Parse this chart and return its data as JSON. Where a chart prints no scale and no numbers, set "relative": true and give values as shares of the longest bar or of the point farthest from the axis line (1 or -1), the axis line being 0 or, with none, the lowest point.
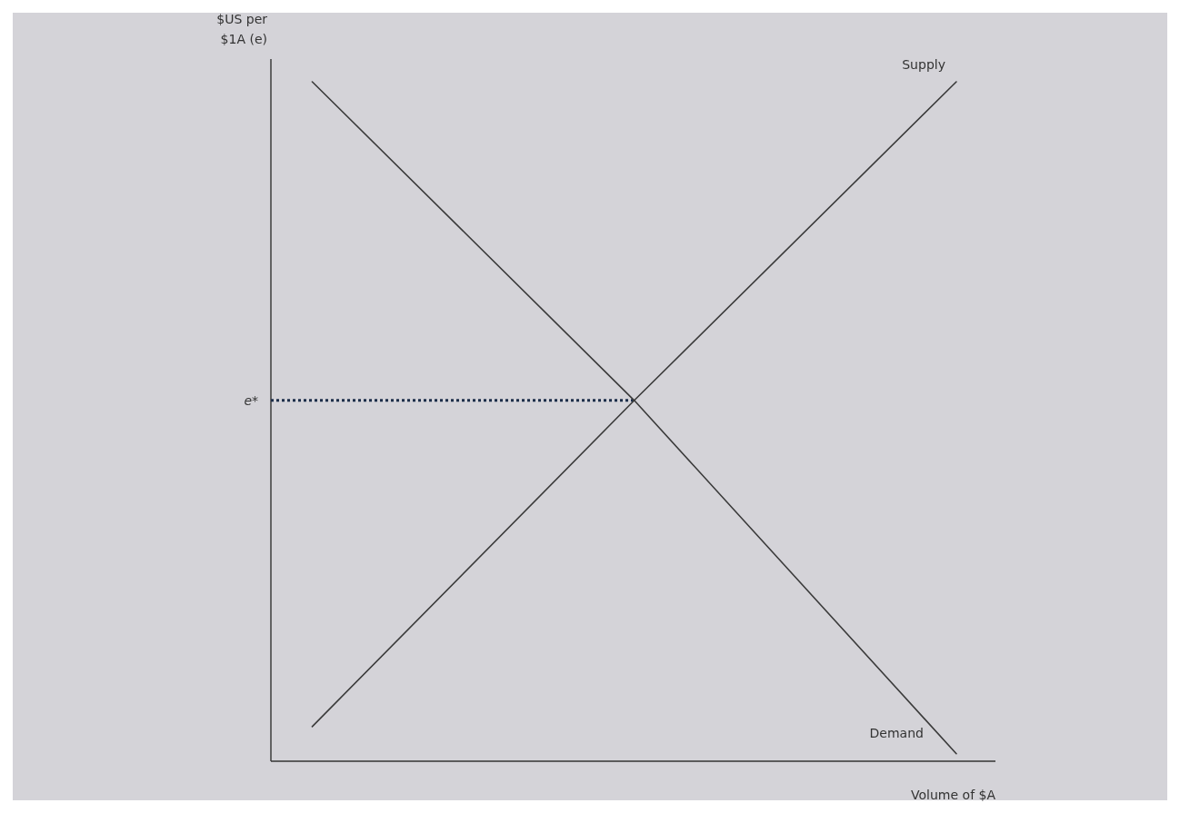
{
  "chart_data": {
    "type": "line",
    "relative": true,
    "xlabel": "Volume of $A",
    "ylabel": "$US per $1A (e)",
    "categories": [
      null,
      null,
      null
    ],
    "series": [
      {
        "name": "Demand",
        "color": "#3a3a3a",
        "values": [
          1,
          0.531,
          0.011
        ]
      },
      {
        "name": "Supply",
        "color": "#3a3a3a",
        "values": [
          0.051,
          0.531,
          1
        ]
      }
    ],
    "ref_lines": [
      {
        "axis": "y",
        "value": 0.531,
        "label": "e*",
        "color": "#1c2e4a",
        "line_style": "dotted"
      }
    ]
  }
}
